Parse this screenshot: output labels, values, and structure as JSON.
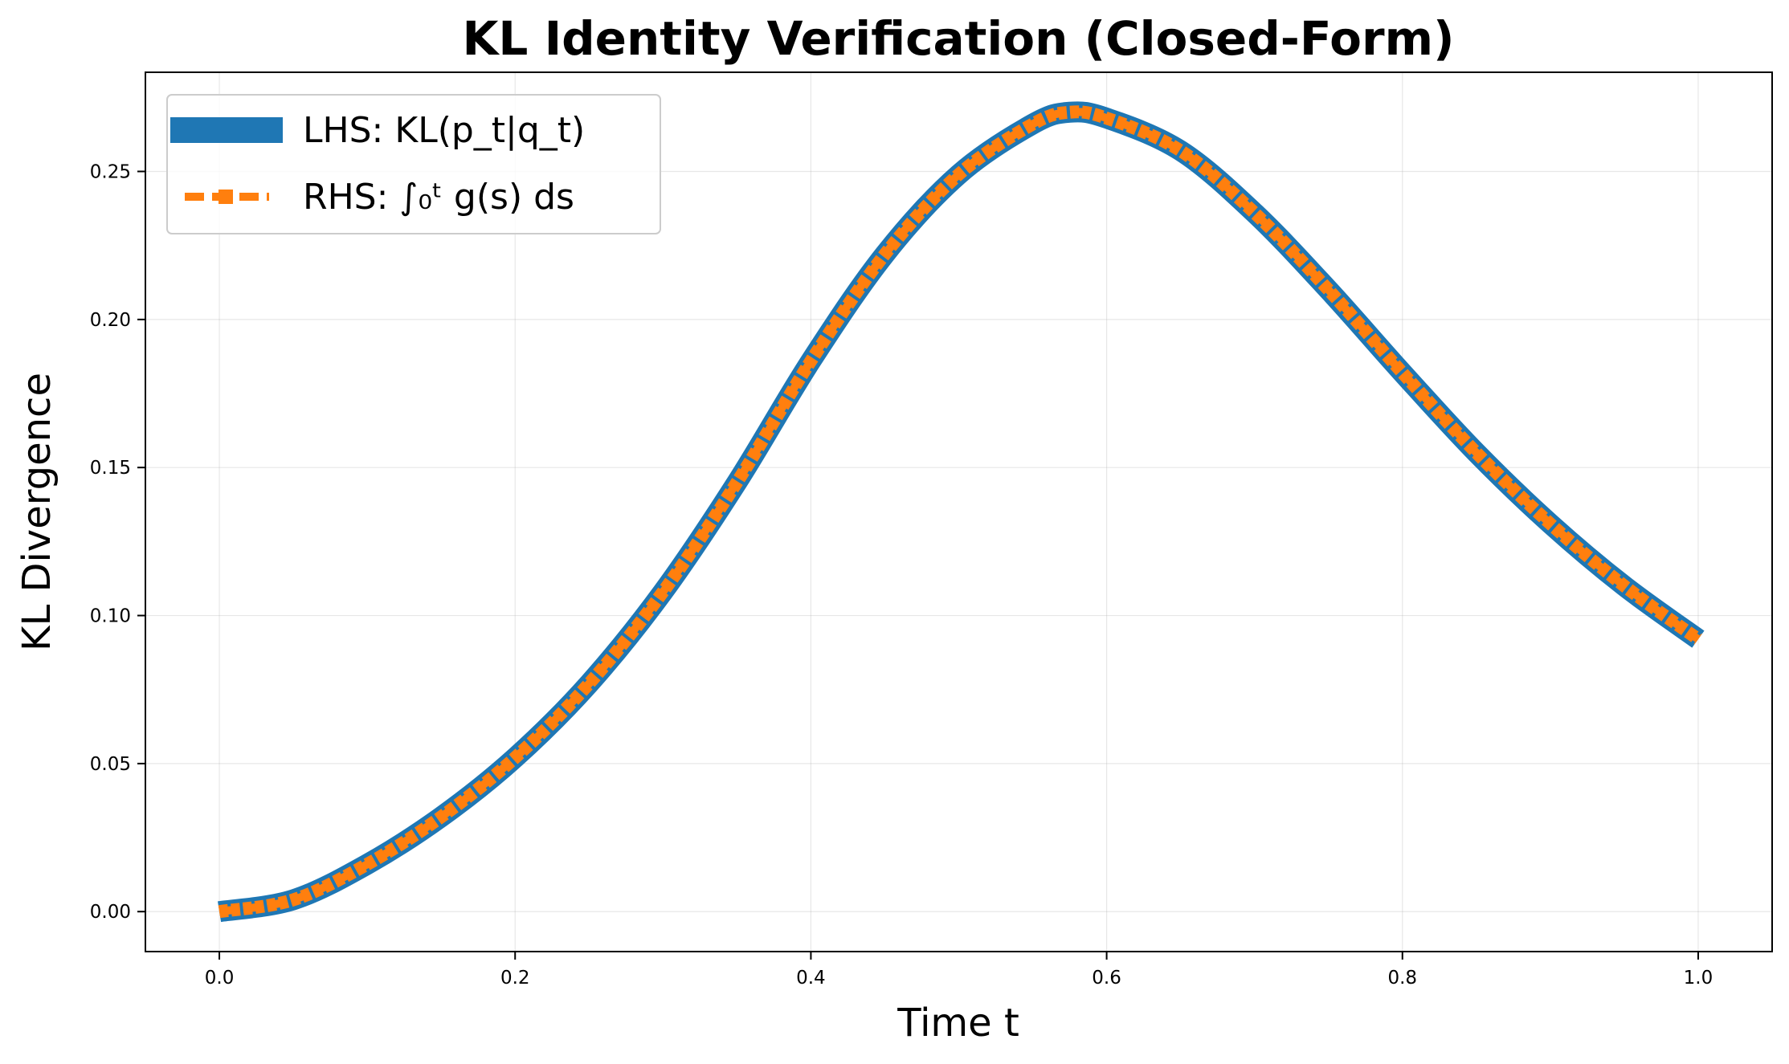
{
  "chart_data": {
    "type": "line",
    "title": "KL Identity Verification (Closed-Form)",
    "xlabel": "Time t",
    "ylabel": "KL Divergence",
    "xlim": [
      -0.05,
      1.05
    ],
    "ylim": [
      -0.0135,
      0.2835
    ],
    "xticks": [
      0.0,
      0.2,
      0.4,
      0.6,
      0.8,
      1.0
    ],
    "xtick_labels": [
      "0.0",
      "0.2",
      "0.4",
      "0.6",
      "0.8",
      "1.0"
    ],
    "yticks": [
      0.0,
      0.05,
      0.1,
      0.15,
      0.2,
      0.25
    ],
    "ytick_labels": [
      "0.00",
      "0.05",
      "0.10",
      "0.15",
      "0.20",
      "0.25"
    ],
    "grid": true,
    "legend_position": "upper-left",
    "x": [
      0.0,
      0.05,
      0.1,
      0.15,
      0.2,
      0.25,
      0.3,
      0.35,
      0.4,
      0.45,
      0.5,
      0.55,
      0.575,
      0.6,
      0.65,
      0.7,
      0.75,
      0.8,
      0.85,
      0.9,
      0.95,
      1.0
    ],
    "series": [
      {
        "name": "LHS: KL(p_t|q_t)",
        "color": "#1f77b4",
        "style": "solid",
        "values": [
          0.0,
          0.004,
          0.016,
          0.032,
          0.052,
          0.077,
          0.108,
          0.145,
          0.186,
          0.222,
          0.249,
          0.266,
          0.27,
          0.268,
          0.257,
          0.236,
          0.21,
          0.182,
          0.155,
          0.131,
          0.11,
          0.092
        ]
      },
      {
        "name": "RHS: ∫₀ᵗ g(s) ds",
        "color": "#ff7f0e",
        "style": "dashed-square",
        "values": [
          0.0,
          0.004,
          0.016,
          0.032,
          0.052,
          0.077,
          0.108,
          0.145,
          0.186,
          0.222,
          0.249,
          0.266,
          0.27,
          0.268,
          0.257,
          0.236,
          0.21,
          0.182,
          0.155,
          0.131,
          0.11,
          0.092
        ]
      }
    ]
  }
}
